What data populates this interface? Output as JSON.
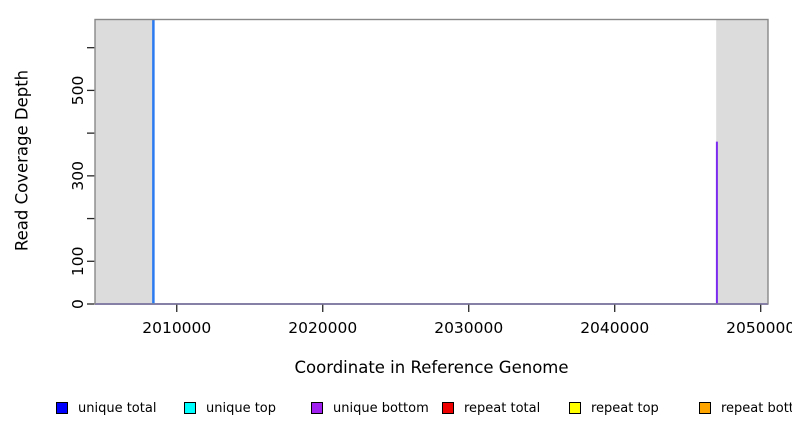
{
  "figure": {
    "ylabel": "Read Coverage Depth",
    "xlabel": "Coordinate in Reference Genome"
  },
  "legend": {
    "items": [
      {
        "label": "unique total",
        "color": "#0000ff"
      },
      {
        "label": "unique top",
        "color": "#00ffff"
      },
      {
        "label": "unique bottom",
        "color": "#a020f0"
      },
      {
        "label": "repeat total",
        "color": "#ee0000"
      },
      {
        "label": "repeat top",
        "color": "#ffff00"
      },
      {
        "label": "repeat bottom",
        "color": "#ffa500"
      }
    ]
  },
  "chart_data": {
    "type": "line",
    "title": "",
    "xlabel": "Coordinate in Reference Genome",
    "ylabel": "Read Coverage Depth",
    "xlim": [
      2004400,
      2050500
    ],
    "ylim": [
      0,
      666
    ],
    "grid": false,
    "legend_position": "bottom",
    "x_ticks": [
      {
        "value": 2010000,
        "label": "2010000"
      },
      {
        "value": 2020000,
        "label": "2020000"
      },
      {
        "value": 2030000,
        "label": "2030000"
      },
      {
        "value": 2040000,
        "label": "2040000"
      },
      {
        "value": 2050000,
        "label": "2050000"
      }
    ],
    "y_ticks": [
      {
        "value": 0,
        "label": "0"
      },
      {
        "value": 100,
        "label": "100"
      },
      {
        "value": 200,
        "label": ""
      },
      {
        "value": 300,
        "label": "300"
      },
      {
        "value": 400,
        "label": ""
      },
      {
        "value": 500,
        "label": "500"
      },
      {
        "value": 600,
        "label": ""
      }
    ],
    "shaded_regions": [
      {
        "x1": 2004400,
        "x2": 2008350
      },
      {
        "x1": 2046950,
        "x2": 2050500
      }
    ],
    "spikes": [
      {
        "series": "unique total",
        "x": 2008400,
        "depth": 666,
        "clipped_at_top": true,
        "display_color": "#2b7af0",
        "width": 2.5
      },
      {
        "series": "unique bottom",
        "x": 2047000,
        "depth": 380,
        "clipped_at_top": false,
        "display_color": "#7c2bee",
        "width": 2
      }
    ],
    "baseline": {
      "depth": 0,
      "display_color": "#8470f0"
    },
    "colors": {
      "region": "#dcdcdc",
      "box": "#888888",
      "tick": "#262626",
      "tick_label": "#000000"
    }
  }
}
